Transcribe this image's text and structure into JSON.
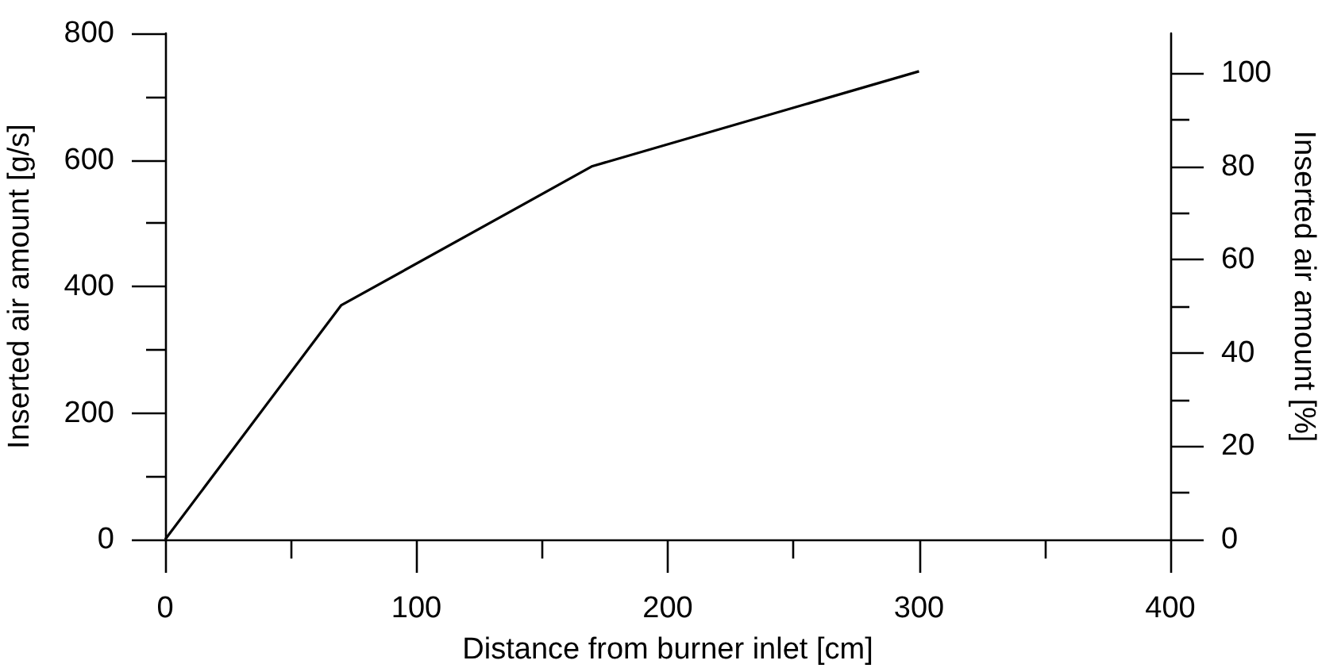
{
  "chart_data": {
    "type": "line",
    "xlabel": "Distance from burner inlet [cm]",
    "ylabel": "Inserted air amount [g/s]",
    "y2label": "Inserted air amount [%]",
    "x": [
      0,
      70,
      170,
      300
    ],
    "series": [
      {
        "color": "#000000",
        "values": [
          0,
          370,
          590,
          740
        ]
      }
    ],
    "xlim": [
      0,
      400
    ],
    "xticks": [
      0,
      {
        "value": 50,
        "label": null
      },
      100,
      {
        "value": 150,
        "label": null
      },
      200,
      {
        "value": 250,
        "label": null
      },
      300,
      {
        "value": 350,
        "label": null
      },
      400
    ],
    "ylim": [
      0,
      800
    ],
    "yticks": [
      0,
      {
        "value": 100,
        "label": null
      },
      200,
      {
        "value": 300,
        "label": null
      },
      400,
      {
        "value": 500,
        "label": null
      },
      600,
      {
        "value": 700,
        "label": null
      },
      800
    ],
    "y2lim": [
      0,
      108.5
    ],
    "y2ticks": [
      0,
      {
        "value": 10,
        "label": null
      },
      20,
      {
        "value": 30,
        "label": null
      },
      40,
      {
        "value": 50,
        "label": null
      },
      60,
      {
        "value": 70,
        "label": null
      },
      80,
      {
        "value": 90,
        "label": null
      },
      100
    ],
    "grid": false,
    "marker": "none",
    "line_style": "solid"
  }
}
